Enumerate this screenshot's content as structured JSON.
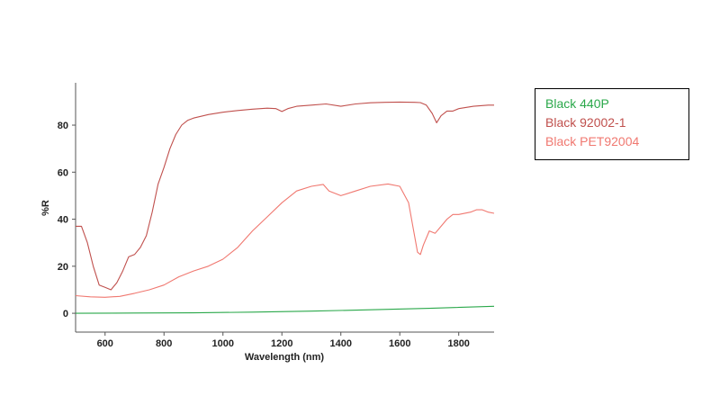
{
  "chart_data": {
    "type": "line",
    "xlabel": "Wavelength (nm)",
    "ylabel": "%R",
    "xlim": [
      500,
      1920
    ],
    "ylim": [
      -8,
      98
    ],
    "xticks": [
      600,
      800,
      1000,
      1200,
      1400,
      1600,
      1800
    ],
    "yticks": [
      0,
      20,
      40,
      60,
      80
    ],
    "grid": false,
    "legend_position": "right",
    "series": [
      {
        "name": "Black 440P",
        "color": "#2aa84a",
        "x": [
          500,
          700,
          900,
          1100,
          1300,
          1500,
          1700,
          1920
        ],
        "y": [
          0.0,
          0.1,
          0.2,
          0.5,
          0.9,
          1.5,
          2.1,
          3.0
        ]
      },
      {
        "name": "Black 92002-1",
        "color": "#c0504d",
        "x": [
          500,
          520,
          540,
          560,
          580,
          600,
          620,
          640,
          660,
          680,
          700,
          720,
          740,
          760,
          780,
          800,
          820,
          840,
          860,
          880,
          900,
          950,
          1000,
          1050,
          1100,
          1150,
          1180,
          1200,
          1220,
          1250,
          1300,
          1350,
          1400,
          1450,
          1500,
          1550,
          1600,
          1650,
          1670,
          1690,
          1710,
          1725,
          1740,
          1760,
          1780,
          1800,
          1850,
          1900,
          1920
        ],
        "y": [
          37,
          37,
          30,
          20,
          12,
          11,
          10,
          13,
          18,
          24,
          25,
          28,
          33,
          43,
          55,
          62,
          70,
          76,
          80,
          82,
          83,
          84.5,
          85.5,
          86.2,
          86.8,
          87.2,
          87,
          85.8,
          87,
          88,
          88.5,
          89,
          88,
          89,
          89.5,
          89.7,
          89.8,
          89.7,
          89.6,
          88.5,
          85,
          81,
          84,
          86,
          86,
          87,
          88,
          88.5,
          88.5
        ]
      },
      {
        "name": "Black PET92004",
        "color": "#f07870",
        "x": [
          500,
          550,
          600,
          650,
          700,
          750,
          800,
          850,
          900,
          950,
          1000,
          1050,
          1100,
          1150,
          1200,
          1250,
          1300,
          1340,
          1360,
          1400,
          1450,
          1500,
          1560,
          1600,
          1630,
          1650,
          1660,
          1670,
          1680,
          1700,
          1720,
          1740,
          1760,
          1780,
          1800,
          1840,
          1860,
          1880,
          1900,
          1920
        ],
        "y": [
          7.5,
          7,
          6.8,
          7.2,
          8.5,
          10,
          12,
          15.5,
          18,
          20,
          23,
          28,
          35,
          41,
          47,
          52,
          54,
          54.8,
          52,
          50,
          52,
          54,
          55,
          54,
          47,
          33,
          26,
          25,
          29,
          35,
          34,
          37,
          40,
          42,
          42,
          43,
          44,
          44,
          43,
          42.5
        ]
      }
    ]
  }
}
